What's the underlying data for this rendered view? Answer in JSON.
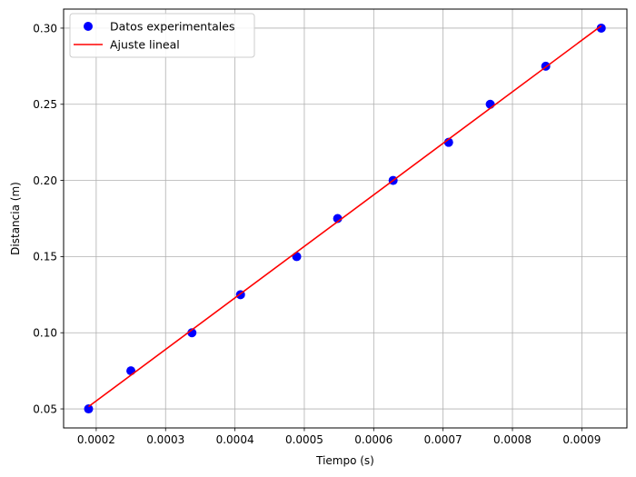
{
  "chart_data": {
    "type": "scatter",
    "xlabel": "Tiempo (s)",
    "ylabel": "Distancia (m)",
    "xlim": [
      0.000153,
      0.000965
    ],
    "ylim": [
      0.0375,
      0.3125
    ],
    "grid": true,
    "legend_position": "upper-left",
    "x_ticks": [
      0.0002,
      0.0003,
      0.0004,
      0.0005,
      0.0006,
      0.0007,
      0.0008,
      0.0009
    ],
    "x_tick_labels": [
      "0.0002",
      "0.0003",
      "0.0004",
      "0.0005",
      "0.0006",
      "0.0007",
      "0.0008",
      "0.0009"
    ],
    "y_ticks": [
      0.05,
      0.1,
      0.15,
      0.2,
      0.25,
      0.3
    ],
    "y_tick_labels": [
      "0.05",
      "0.10",
      "0.15",
      "0.20",
      "0.25",
      "0.30"
    ],
    "series": [
      {
        "name": "Datos experimentales",
        "kind": "scatter",
        "color": "#0000ff",
        "x": [
          0.000189,
          0.00025,
          0.000338,
          0.000408,
          0.000489,
          0.000548,
          0.000628,
          0.000708,
          0.000768,
          0.000848,
          0.000928
        ],
        "y": [
          0.05,
          0.075,
          0.1,
          0.125,
          0.15,
          0.175,
          0.2,
          0.225,
          0.25,
          0.275,
          0.3
        ]
      },
      {
        "name": "Ajuste lineal",
        "kind": "line",
        "color": "#ff0000",
        "x": [
          0.000189,
          0.000928
        ],
        "y": [
          0.0515,
          0.3015
        ]
      }
    ]
  }
}
